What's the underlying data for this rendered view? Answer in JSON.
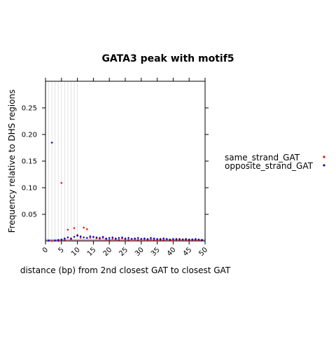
{
  "chart_data": {
    "type": "scatter",
    "title": "GATA3 peak with motif5",
    "xlabel": "distance (bp) from 2nd closest GAT to closest GAT",
    "ylabel": "Frequency relative to DHS regions",
    "xlim": [
      0,
      50
    ],
    "ylim": [
      0,
      0.3
    ],
    "x_ticks": [
      "0",
      "5",
      "10",
      "15",
      "20",
      "25",
      "30",
      "35",
      "40",
      "45",
      "50"
    ],
    "y_ticks": [
      "0.05",
      "0.10",
      "0.15",
      "0.20",
      "0.25"
    ],
    "legend_placement": "right",
    "grid": "vertical lines at x = 1..10",
    "series": [
      {
        "name": "same_strand_GAT",
        "color": "#ff0000",
        "points": [
          [
            2,
            0.0
          ],
          [
            4,
            0.0
          ],
          [
            5,
            0.109
          ],
          [
            6,
            0.002
          ],
          [
            7,
            0.021
          ],
          [
            8,
            0.005
          ],
          [
            9,
            0.024
          ],
          [
            10,
            0.011
          ],
          [
            11,
            0.006
          ],
          [
            12,
            0.025
          ],
          [
            13,
            0.022
          ],
          [
            14,
            0.006
          ],
          [
            15,
            0.007
          ],
          [
            16,
            0.005
          ],
          [
            17,
            0.004
          ],
          [
            18,
            0.006
          ],
          [
            19,
            0.003
          ],
          [
            20,
            0.002
          ],
          [
            21,
            0.004
          ],
          [
            22,
            0.003
          ],
          [
            23,
            0.002
          ],
          [
            24,
            0.005
          ],
          [
            25,
            0.003
          ],
          [
            26,
            0.002
          ],
          [
            27,
            0.004
          ],
          [
            28,
            0.003
          ],
          [
            29,
            0.002
          ],
          [
            30,
            0.004
          ],
          [
            31,
            0.003
          ],
          [
            32,
            0.002
          ],
          [
            33,
            0.003
          ],
          [
            34,
            0.002
          ],
          [
            35,
            0.001
          ],
          [
            36,
            0.004
          ],
          [
            37,
            0.002
          ],
          [
            38,
            0.003
          ],
          [
            39,
            0.002
          ],
          [
            40,
            0.001
          ],
          [
            41,
            0.004
          ],
          [
            42,
            0.002
          ],
          [
            43,
            0.003
          ],
          [
            44,
            0.002
          ],
          [
            45,
            0.001
          ],
          [
            46,
            0.003
          ],
          [
            47,
            0.002
          ],
          [
            48,
            0.001
          ],
          [
            49,
            0.002
          ]
        ]
      },
      {
        "name": "opposite_strand_GAT",
        "color": "#0000cc",
        "points": [
          [
            1,
            0.0
          ],
          [
            2,
            0.184
          ],
          [
            3,
            0.0
          ],
          [
            4,
            0.001
          ],
          [
            5,
            0.002
          ],
          [
            6,
            0.004
          ],
          [
            7,
            0.006
          ],
          [
            8,
            0.003
          ],
          [
            9,
            0.007
          ],
          [
            10,
            0.009
          ],
          [
            11,
            0.008
          ],
          [
            12,
            0.006
          ],
          [
            13,
            0.005
          ],
          [
            14,
            0.008
          ],
          [
            15,
            0.007
          ],
          [
            16,
            0.006
          ],
          [
            17,
            0.005
          ],
          [
            18,
            0.007
          ],
          [
            19,
            0.004
          ],
          [
            20,
            0.005
          ],
          [
            21,
            0.006
          ],
          [
            22,
            0.004
          ],
          [
            23,
            0.005
          ],
          [
            24,
            0.006
          ],
          [
            25,
            0.004
          ],
          [
            26,
            0.005
          ],
          [
            27,
            0.003
          ],
          [
            28,
            0.004
          ],
          [
            29,
            0.005
          ],
          [
            30,
            0.003
          ],
          [
            31,
            0.004
          ],
          [
            32,
            0.003
          ],
          [
            33,
            0.005
          ],
          [
            34,
            0.004
          ],
          [
            35,
            0.003
          ],
          [
            36,
            0.002
          ],
          [
            37,
            0.004
          ],
          [
            38,
            0.003
          ],
          [
            39,
            0.002
          ],
          [
            40,
            0.003
          ],
          [
            41,
            0.002
          ],
          [
            42,
            0.003
          ],
          [
            43,
            0.002
          ],
          [
            44,
            0.003
          ],
          [
            45,
            0.002
          ],
          [
            46,
            0.002
          ],
          [
            47,
            0.003
          ],
          [
            48,
            0.002
          ],
          [
            49,
            0.001
          ]
        ]
      }
    ]
  }
}
